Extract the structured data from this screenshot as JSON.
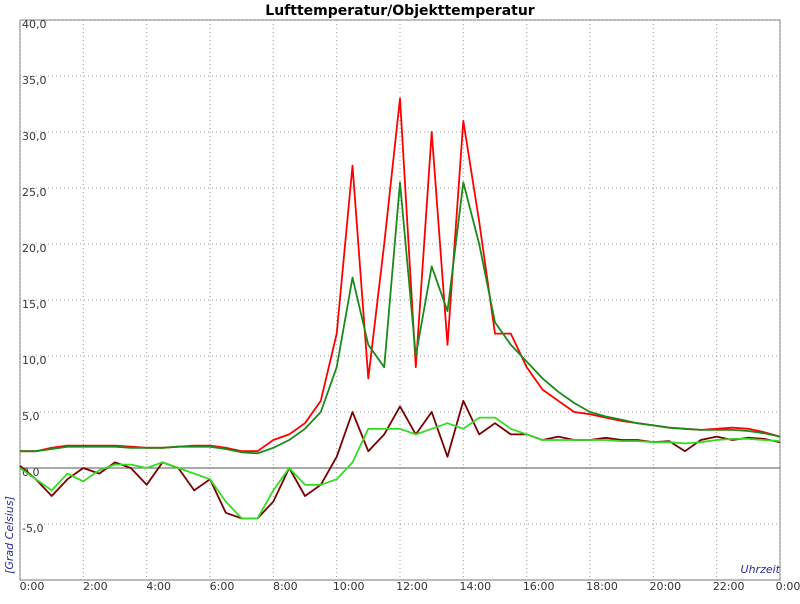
{
  "chart_data": {
    "type": "line",
    "title": "Lufttemperatur/Objekttemperatur",
    "y_label": "[Grad Celsius]",
    "x_label": "Uhrzeit",
    "x": [
      0,
      0.5,
      1,
      1.5,
      2,
      2.5,
      3,
      3.5,
      4,
      4.5,
      5,
      5.5,
      6,
      6.5,
      7,
      7.5,
      8,
      8.5,
      9,
      9.5,
      10,
      10.5,
      11,
      11.5,
      12,
      12.5,
      13,
      13.5,
      14,
      14.5,
      15,
      15.5,
      16,
      16.5,
      17,
      17.5,
      18,
      18.5,
      19,
      19.5,
      20,
      20.5,
      21,
      21.5,
      22,
      22.5,
      23,
      23.5,
      24
    ],
    "series": [
      {
        "color": "#ff0000",
        "values": [
          1.5,
          1.5,
          1.8,
          2,
          2,
          2,
          2,
          1.9,
          1.8,
          1.8,
          1.9,
          2,
          2,
          1.8,
          1.5,
          1.5,
          2.5,
          3,
          4,
          6,
          12,
          27,
          8,
          20,
          33,
          9,
          30,
          11,
          31,
          22,
          12,
          12,
          9,
          7,
          6,
          5,
          4.8,
          4.5,
          4.2,
          4,
          3.8,
          3.6,
          3.5,
          3.4,
          3.5,
          3.6,
          3.5,
          3.2,
          2.8
        ]
      },
      {
        "color": "#1a8a1a",
        "values": [
          1.5,
          1.5,
          1.7,
          1.9,
          1.9,
          1.9,
          1.9,
          1.8,
          1.8,
          1.8,
          1.9,
          1.9,
          1.9,
          1.7,
          1.4,
          1.3,
          1.8,
          2.5,
          3.5,
          5,
          9,
          17,
          11,
          9,
          25.5,
          10,
          18,
          14,
          25.5,
          20,
          13,
          11,
          9.5,
          8,
          6.8,
          5.8,
          5,
          4.6,
          4.3,
          4,
          3.8,
          3.6,
          3.5,
          3.4,
          3.4,
          3.4,
          3.3,
          3.1,
          2.8
        ]
      },
      {
        "color": "#7b0000",
        "values": [
          0.2,
          -1,
          -2.5,
          -1,
          0,
          -0.5,
          0.5,
          0,
          -1.5,
          0.5,
          0,
          -2,
          -1,
          -4,
          -4.5,
          -4.5,
          -3,
          0,
          -2.5,
          -1.5,
          1,
          5,
          1.5,
          3,
          5.5,
          3,
          5,
          1,
          6,
          3,
          4,
          3,
          3,
          2.5,
          2.8,
          2.5,
          2.5,
          2.7,
          2.5,
          2.5,
          2.3,
          2.4,
          1.5,
          2.5,
          2.8,
          2.5,
          2.7,
          2.6,
          2.3
        ]
      },
      {
        "color": "#33dd22",
        "values": [
          0,
          -1,
          -2,
          -0.5,
          -1.2,
          -0.2,
          0.3,
          0.3,
          0,
          0.5,
          0,
          -0.5,
          -1,
          -3,
          -4.5,
          -4.5,
          -2,
          0,
          -1.5,
          -1.5,
          -1,
          0.5,
          3.5,
          3.5,
          3.5,
          3,
          3.5,
          4,
          3.5,
          4.5,
          4.5,
          3.5,
          3,
          2.5,
          2.5,
          2.5,
          2.5,
          2.5,
          2.4,
          2.4,
          2.3,
          2.3,
          2.2,
          2.3,
          2.5,
          2.6,
          2.6,
          2.5,
          2.4
        ]
      }
    ],
    "xlim": [
      0,
      24
    ],
    "xticks": [
      {
        "value": 0,
        "label": "0:00"
      },
      {
        "value": 2,
        "label": "2:00"
      },
      {
        "value": 4,
        "label": "4:00"
      },
      {
        "value": 6,
        "label": "6:00"
      },
      {
        "value": 8,
        "label": "8:00"
      },
      {
        "value": 10,
        "label": "10:00"
      },
      {
        "value": 12,
        "label": "12:00"
      },
      {
        "value": 14,
        "label": "14:00"
      },
      {
        "value": 16,
        "label": "16:00"
      },
      {
        "value": 18,
        "label": "18:00"
      },
      {
        "value": 20,
        "label": "20:00"
      },
      {
        "value": 22,
        "label": "22:00"
      },
      {
        "value": 24,
        "label": "0:00"
      }
    ],
    "ylim": [
      -10,
      40
    ],
    "yticks": [
      {
        "value": -5,
        "label": "-5,0"
      },
      {
        "value": 0,
        "label": "0,0"
      },
      {
        "value": 5,
        "label": "5,0"
      },
      {
        "value": 10,
        "label": "10,0"
      },
      {
        "value": 15,
        "label": "15,0"
      },
      {
        "value": 20,
        "label": "20,0"
      },
      {
        "value": 25,
        "label": "25,0"
      },
      {
        "value": 30,
        "label": "30,0"
      },
      {
        "value": 35,
        "label": "35,0"
      },
      {
        "value": 40,
        "label": "40,0"
      }
    ],
    "grid": true
  }
}
